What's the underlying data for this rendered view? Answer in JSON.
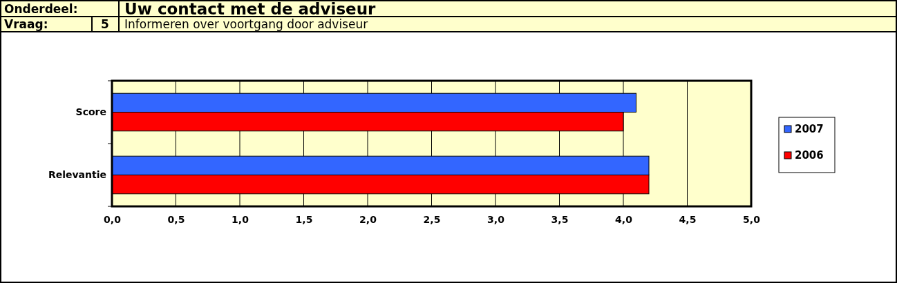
{
  "chart_data": {
    "type": "bar",
    "orientation": "horizontal",
    "title": "Uw contact met de adviseur",
    "subtitle": "Informeren over voortgang door adviseur",
    "annotations": [
      "Onderdeel:",
      "Vraag:",
      "5"
    ],
    "categories": [
      "Score",
      "Relevantie"
    ],
    "series": [
      {
        "name": "2007",
        "color": "#3366ff",
        "values": [
          4.1,
          4.2
        ]
      },
      {
        "name": "2006",
        "color": "#ff0000",
        "values": [
          4.0,
          4.2
        ]
      }
    ],
    "xlim": [
      0,
      5
    ],
    "xticks": [
      {
        "value": 0,
        "label": "0,0"
      },
      {
        "value": 0.5,
        "label": "0,5"
      },
      {
        "value": 1,
        "label": "1,0"
      },
      {
        "value": 1.5,
        "label": "1,5"
      },
      {
        "value": 2,
        "label": "2,0"
      },
      {
        "value": 2.5,
        "label": "2,5"
      },
      {
        "value": 3,
        "label": "3,0"
      },
      {
        "value": 3.5,
        "label": "3,5"
      },
      {
        "value": 4,
        "label": "4,0"
      },
      {
        "value": 4.5,
        "label": "4,5"
      },
      {
        "value": 5,
        "label": "5,0"
      }
    ],
    "grid": "x",
    "legend": "right"
  }
}
